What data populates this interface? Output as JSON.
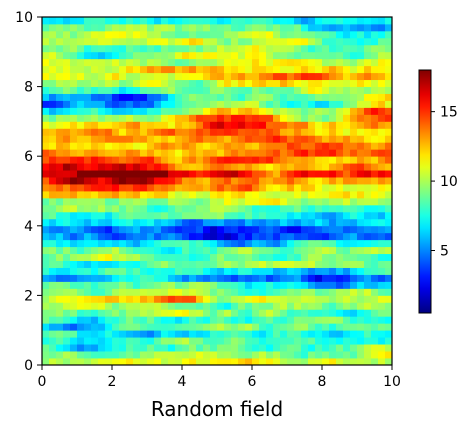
{
  "chart_data": {
    "type": "heatmap",
    "title": "",
    "xlabel": "Random field",
    "ylabel": "",
    "xlim": [
      0,
      10
    ],
    "ylim": [
      0,
      10
    ],
    "grid": false,
    "colormap": "jet",
    "xticks": [
      0,
      2,
      4,
      6,
      8,
      10
    ],
    "yticks": [
      0,
      2,
      4,
      6,
      8,
      10
    ],
    "colorbar": {
      "range": [
        0.5,
        18
      ],
      "ticks": [
        5,
        10,
        15
      ],
      "placement": "right"
    },
    "grid_size": [
      50,
      50
    ],
    "random_seed": 7,
    "row_profile": [
      {
        "y": 0.0,
        "value": 11.0
      },
      {
        "y": 0.5,
        "value": 8.5
      },
      {
        "y": 1.0,
        "value": 7.5
      },
      {
        "y": 1.5,
        "value": 9.0
      },
      {
        "y": 2.0,
        "value": 10.5
      },
      {
        "y": 2.5,
        "value": 6.0
      },
      {
        "y": 3.0,
        "value": 9.5
      },
      {
        "y": 3.4,
        "value": 9.0
      },
      {
        "y": 3.8,
        "value": 4.5
      },
      {
        "y": 4.2,
        "value": 7.5
      },
      {
        "y": 4.6,
        "value": 8.5
      },
      {
        "y": 5.0,
        "value": 11.5
      },
      {
        "y": 5.5,
        "value": 14.5
      },
      {
        "y": 6.0,
        "value": 13.0
      },
      {
        "y": 6.5,
        "value": 12.5
      },
      {
        "y": 7.0,
        "value": 11.0
      },
      {
        "y": 7.5,
        "value": 7.0
      },
      {
        "y": 8.0,
        "value": 10.0
      },
      {
        "y": 8.5,
        "value": 11.5
      },
      {
        "y": 9.0,
        "value": 10.5
      },
      {
        "y": 9.5,
        "value": 9.5
      },
      {
        "y": 10.0,
        "value": 7.5
      }
    ],
    "blobs": [
      {
        "x": 1.5,
        "y": 5.5,
        "sx": 1.8,
        "sy": 0.5,
        "value": 4.0
      },
      {
        "x": 3.0,
        "y": 5.4,
        "sx": 0.6,
        "sy": 0.3,
        "value": 2.5
      },
      {
        "x": 5.5,
        "y": 7.1,
        "sx": 1.5,
        "sy": 0.45,
        "value": 4.5
      },
      {
        "x": 9.6,
        "y": 7.4,
        "sx": 0.9,
        "sy": 0.5,
        "value": 5.0
      },
      {
        "x": 7.5,
        "y": 8.2,
        "sx": 1.8,
        "sy": 0.4,
        "value": 3.0
      },
      {
        "x": 2.5,
        "y": 7.7,
        "sx": 1.5,
        "sy": 0.3,
        "value": -4.0
      },
      {
        "x": 0.3,
        "y": 7.6,
        "sx": 0.6,
        "sy": 0.4,
        "value": -3.0
      },
      {
        "x": 5.0,
        "y": 3.8,
        "sx": 1.4,
        "sy": 0.35,
        "value": -3.0
      },
      {
        "x": 8.5,
        "y": 3.8,
        "sx": 1.5,
        "sy": 0.3,
        "value": -2.5
      },
      {
        "x": 8.0,
        "y": 2.4,
        "sx": 1.8,
        "sy": 0.3,
        "value": -3.0
      },
      {
        "x": 1.5,
        "y": 1.0,
        "sx": 0.8,
        "sy": 0.6,
        "value": -2.5
      },
      {
        "x": 2.0,
        "y": 9.0,
        "sx": 1.2,
        "sy": 0.3,
        "value": -3.0
      },
      {
        "x": 9.0,
        "y": 9.6,
        "sx": 1.5,
        "sy": 0.3,
        "value": -3.5
      },
      {
        "x": 8.5,
        "y": 9.0,
        "sx": 1.0,
        "sy": 0.35,
        "value": -2.5
      },
      {
        "x": 3.8,
        "y": 2.0,
        "sx": 1.0,
        "sy": 0.3,
        "value": 3.5
      },
      {
        "x": 5.5,
        "y": 4.8,
        "sx": 1.2,
        "sy": 0.3,
        "value": 2.0
      },
      {
        "x": 7.5,
        "y": 6.3,
        "sx": 1.0,
        "sy": 0.3,
        "value": 1.5
      }
    ]
  }
}
